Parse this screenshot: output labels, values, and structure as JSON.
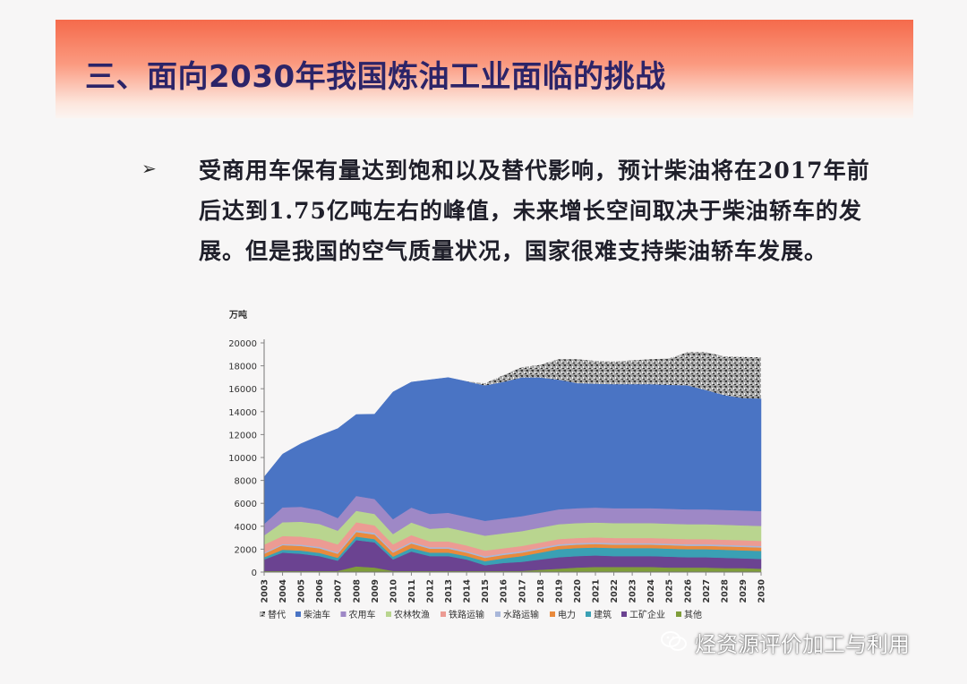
{
  "slide": {
    "title": "三、面向2030年我国炼油工业面临的挑战",
    "bullet_symbol": "➢",
    "bullet_text": "受商用车保有量达到饱和以及替代影响，预计柴油将在2017年前后达到1.75亿吨左右的峰值，未来增长空间取决于柴油轿车的发展。但是我国的空气质量状况，国家很难支持柴油轿车发展。"
  },
  "chart_data": {
    "type": "area",
    "stacked": true,
    "unit_label": "万吨",
    "ylim": [
      0,
      20000
    ],
    "yticks": [
      0,
      2000,
      4000,
      6000,
      8000,
      10000,
      12000,
      14000,
      16000,
      18000,
      20000
    ],
    "x": [
      "2003",
      "2004",
      "2005",
      "2006",
      "2007",
      "2008",
      "2009",
      "2010",
      "2011",
      "2012",
      "2013",
      "2014",
      "2015",
      "2016",
      "2017",
      "2018",
      "2019",
      "2020",
      "2021",
      "2022",
      "2023",
      "2024",
      "2025",
      "2026",
      "2027",
      "2028",
      "2029",
      "2030"
    ],
    "legend_position": "bottom",
    "series": [
      {
        "name": "其他",
        "color": "#7f9d3a",
        "values": [
          100,
          100,
          100,
          100,
          100,
          500,
          400,
          100,
          100,
          100,
          100,
          100,
          100,
          100,
          100,
          200,
          300,
          400,
          450,
          450,
          450,
          450,
          400,
          400,
          400,
          350,
          350,
          300
        ]
      },
      {
        "name": "工矿企业",
        "color": "#6b4391",
        "values": [
          1000,
          1600,
          1500,
          1300,
          900,
          2300,
          2200,
          1000,
          1700,
          1300,
          1300,
          1000,
          500,
          700,
          800,
          900,
          1000,
          1000,
          1000,
          950,
          950,
          950,
          950,
          900,
          900,
          900,
          850,
          850
        ]
      },
      {
        "name": "建筑",
        "color": "#3aa0b4",
        "values": [
          200,
          250,
          280,
          280,
          250,
          300,
          280,
          250,
          300,
          300,
          300,
          300,
          350,
          400,
          500,
          600,
          700,
          700,
          700,
          700,
          700,
          700,
          700,
          700,
          700,
          700,
          700,
          700
        ]
      },
      {
        "name": "电力",
        "color": "#e98a3c",
        "values": [
          300,
          400,
          400,
          400,
          350,
          400,
          400,
          350,
          400,
          350,
          350,
          300,
          300,
          300,
          300,
          300,
          300,
          300,
          300,
          300,
          300,
          300,
          300,
          300,
          300,
          300,
          300,
          300
        ]
      },
      {
        "name": "水路运输",
        "color": "#a9b7d9",
        "values": [
          100,
          100,
          120,
          120,
          120,
          150,
          150,
          120,
          130,
          130,
          130,
          130,
          130,
          130,
          130,
          130,
          130,
          130,
          130,
          130,
          130,
          130,
          130,
          130,
          130,
          130,
          130,
          130
        ]
      },
      {
        "name": "铁路运输",
        "color": "#ec9b93",
        "values": [
          700,
          700,
          700,
          700,
          700,
          700,
          650,
          600,
          600,
          500,
          500,
          500,
          500,
          450,
          450,
          450,
          450,
          450,
          450,
          450,
          450,
          450,
          450,
          450,
          450,
          450,
          450,
          450
        ]
      },
      {
        "name": "农林牧渔",
        "color": "#b9d58f",
        "values": [
          800,
          1200,
          1300,
          1300,
          1200,
          1000,
          1000,
          900,
          1100,
          1100,
          1200,
          1200,
          1300,
          1300,
          1300,
          1300,
          1300,
          1300,
          1300,
          1300,
          1300,
          1300,
          1300,
          1300,
          1300,
          1300,
          1300,
          1300
        ]
      },
      {
        "name": "农用车",
        "color": "#9e88c6",
        "values": [
          1000,
          1300,
          1300,
          1200,
          1100,
          1300,
          1300,
          1300,
          1300,
          1300,
          1300,
          1300,
          1300,
          1300,
          1300,
          1300,
          1300,
          1300,
          1300,
          1300,
          1300,
          1300,
          1300,
          1300,
          1300,
          1300,
          1300,
          1300
        ]
      },
      {
        "name": "柴油车",
        "color": "#4a74c4",
        "values": [
          4100,
          4650,
          5500,
          6500,
          7800,
          7100,
          7400,
          11100,
          10950,
          11700,
          11800,
          11800,
          11800,
          11900,
          12100,
          11800,
          11300,
          10900,
          10800,
          10800,
          10800,
          10800,
          10800,
          10800,
          10400,
          10000,
          9800,
          9800
        ]
      },
      {
        "name": "替代",
        "color": "#9d9d9d",
        "pattern": true,
        "values": [
          0,
          0,
          0,
          0,
          0,
          0,
          0,
          0,
          0,
          0,
          0,
          0,
          200,
          600,
          900,
          1100,
          1800,
          2100,
          2000,
          2000,
          2100,
          2200,
          2300,
          2900,
          3300,
          3400,
          3600,
          3600
        ]
      }
    ],
    "legend_order": [
      "替代",
      "柴油车",
      "农用车",
      "农林牧渔",
      "铁路运输",
      "水路运输",
      "电力",
      "建筑",
      "工矿企业",
      "其他"
    ]
  },
  "watermark": {
    "text": "烃资源评价加工与利用",
    "icon": "wechat-icon"
  }
}
